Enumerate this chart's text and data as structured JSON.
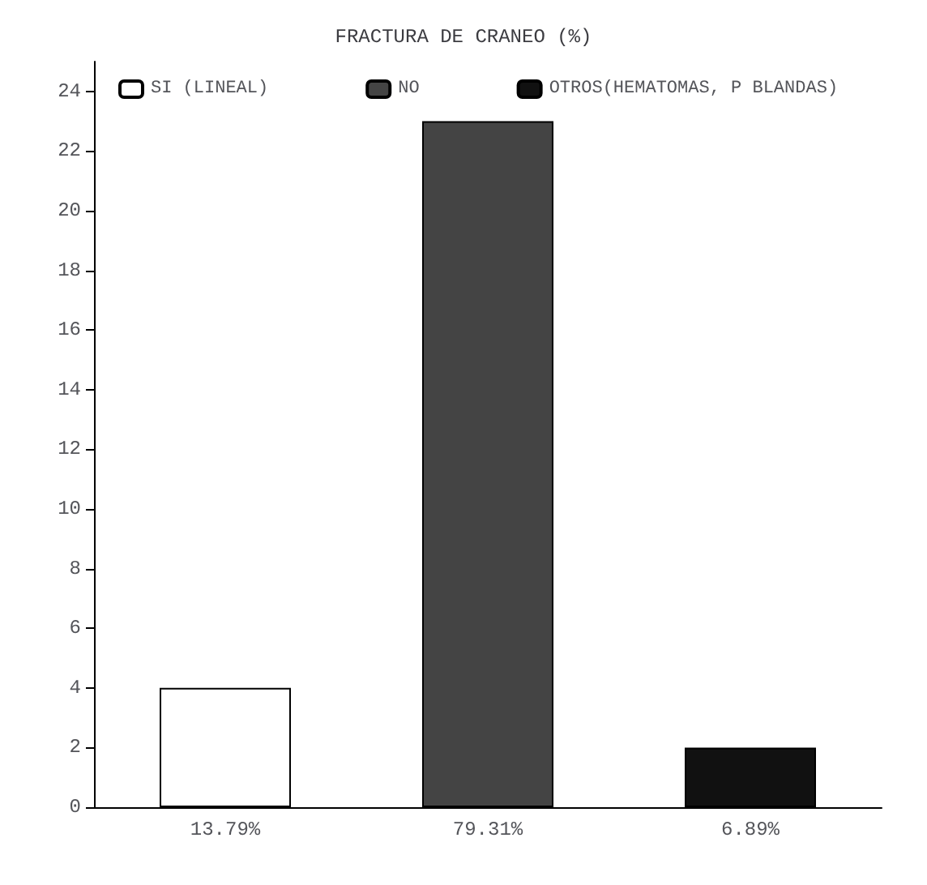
{
  "chart_data": {
    "type": "bar",
    "title": "FRACTURA DE CRANEO (%)",
    "categories": [
      "13.79%",
      "79.31%",
      "6.89%"
    ],
    "series": [
      {
        "name": "SI (LINEAL)",
        "color": "#ffffff",
        "values": [
          4,
          null,
          null
        ]
      },
      {
        "name": "NO",
        "color": "#444444",
        "values": [
          null,
          23,
          null
        ]
      },
      {
        "name": "OTROS(HEMATOMAS, P BLANDAS)",
        "color": "#111111",
        "values": [
          null,
          null,
          2
        ]
      }
    ],
    "stacked": true,
    "ylim": [
      0,
      25
    ],
    "yticks": [
      0,
      2,
      4,
      6,
      8,
      10,
      12,
      14,
      16,
      18,
      20,
      22,
      24
    ],
    "grid": false,
    "legend": "top"
  }
}
